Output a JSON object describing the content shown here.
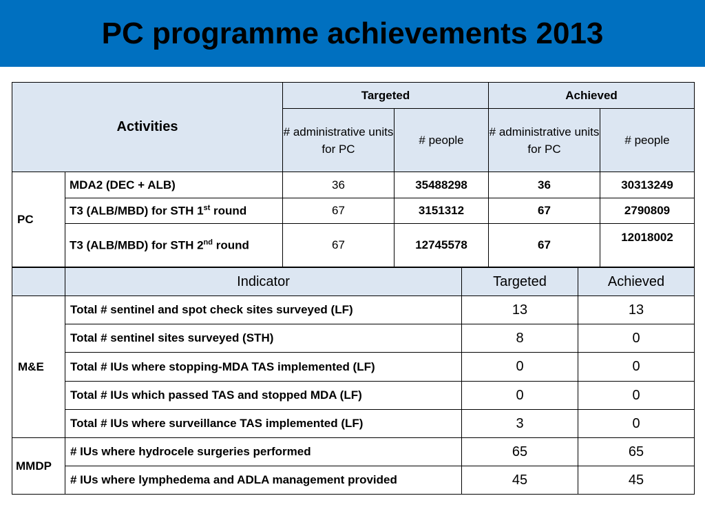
{
  "title": "PC programme achievements 2013",
  "activities_table": {
    "header": {
      "activities": "Activities",
      "targeted": "Targeted",
      "achieved": "Achieved",
      "admin_units": "# administrative units for PC",
      "people": "# people"
    },
    "group": "PC",
    "rows": [
      {
        "activity": "MDA2 (DEC + ALB)",
        "activity_sup": "",
        "activity_suffix": "",
        "targeted_units": "36",
        "targeted_people": "35488298",
        "achieved_units": "36",
        "achieved_people": "30313249"
      },
      {
        "activity": "T3 (ALB/MBD) for STH 1",
        "activity_sup": "st",
        "activity_suffix": " round",
        "targeted_units": "67",
        "targeted_people": "3151312",
        "achieved_units": "67",
        "achieved_people": "2790809"
      },
      {
        "activity": "T3 (ALB/MBD) for STH 2",
        "activity_sup": "nd",
        "activity_suffix": " round",
        "targeted_units": "67",
        "targeted_people": "12745578",
        "achieved_units": "67",
        "achieved_people": "12018002"
      }
    ]
  },
  "indicators_table": {
    "header": {
      "indicator": "Indicator",
      "targeted": "Targeted",
      "achieved": "Achieved"
    },
    "groups": [
      {
        "name": "M&E",
        "rows": [
          {
            "indicator": "Total # sentinel and spot check sites surveyed (LF)",
            "targeted": "13",
            "achieved": "13"
          },
          {
            "indicator": "Total # sentinel sites surveyed (STH)",
            "targeted": "8",
            "achieved": "0"
          },
          {
            "indicator": "Total # IUs where stopping-MDA TAS implemented (LF)",
            "targeted": "0",
            "achieved": "0"
          },
          {
            "indicator": "Total # IUs which passed TAS and stopped MDA (LF)",
            "targeted": "0",
            "achieved": "0"
          },
          {
            "indicator": "Total # IUs where surveillance TAS implemented (LF)",
            "targeted": "3",
            "achieved": "0"
          }
        ]
      },
      {
        "name": "MMDP",
        "rows": [
          {
            "indicator": "# IUs where hydrocele surgeries performed",
            "targeted": "65",
            "achieved": "65"
          },
          {
            "indicator": "# IUs where lymphedema and ADLA management provided",
            "targeted": "45",
            "achieved": "45"
          }
        ]
      }
    ]
  },
  "colors": {
    "title_bar": "#0070c0",
    "header_fill": "#dce6f2"
  }
}
